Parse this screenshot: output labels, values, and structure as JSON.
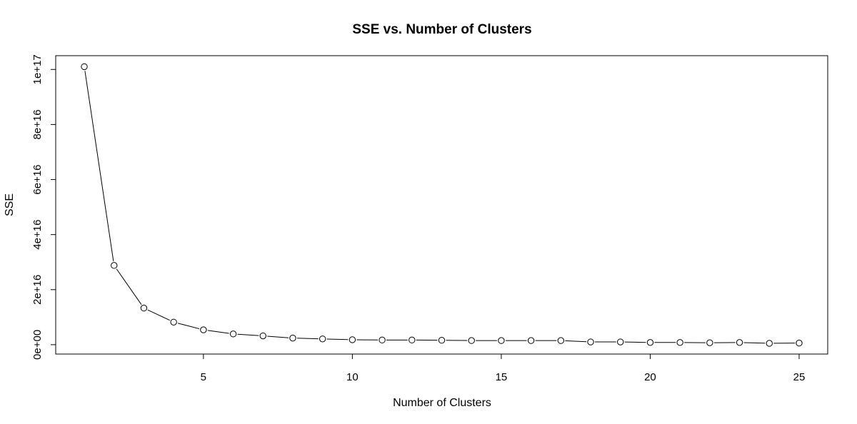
{
  "chart_data": {
    "type": "line",
    "title": "SSE vs. Number of Clusters",
    "xlabel": "Number of Clusters",
    "ylabel": "SSE",
    "x": [
      1,
      2,
      3,
      4,
      5,
      6,
      7,
      8,
      9,
      10,
      11,
      12,
      13,
      14,
      15,
      16,
      17,
      18,
      19,
      20,
      21,
      22,
      23,
      24,
      25
    ],
    "series": [
      {
        "values": [
          1.01e+17,
          2.88e+16,
          1.33e+16,
          8200000000000000.0,
          5400000000000000.0,
          3900000000000000.0,
          3200000000000000.0,
          2400000000000000.0,
          2100000000000000.0,
          1800000000000000.0,
          1700000000000000.0,
          1700000000000000.0,
          1600000000000000.0,
          1500000000000000.0,
          1500000000000000.0,
          1500000000000000.0,
          1500000000000000.0,
          1000000000000000.0,
          1000000000000000.0,
          800000000000000.0,
          800000000000000.0,
          700000000000000.0,
          800000000000000.0,
          500000000000000.0,
          600000000000000.0
        ]
      }
    ],
    "xlim": [
      0.04,
      25.96
    ],
    "ylim": [
      -3400000000000000.0,
      1.05e+17
    ],
    "x_ticks": [
      5,
      10,
      15,
      20,
      25
    ],
    "x_tick_labels": [
      "5",
      "10",
      "15",
      "20",
      "25"
    ],
    "y_ticks": [
      0,
      2e+16,
      4e+16,
      6e+16,
      8e+16,
      1e+17
    ],
    "y_tick_labels": [
      "0e+00",
      "2e+16",
      "4e+16",
      "6e+16",
      "8e+16",
      "1e+17"
    ],
    "markers": "open-circle",
    "grid": false,
    "line_color": "#000000"
  }
}
